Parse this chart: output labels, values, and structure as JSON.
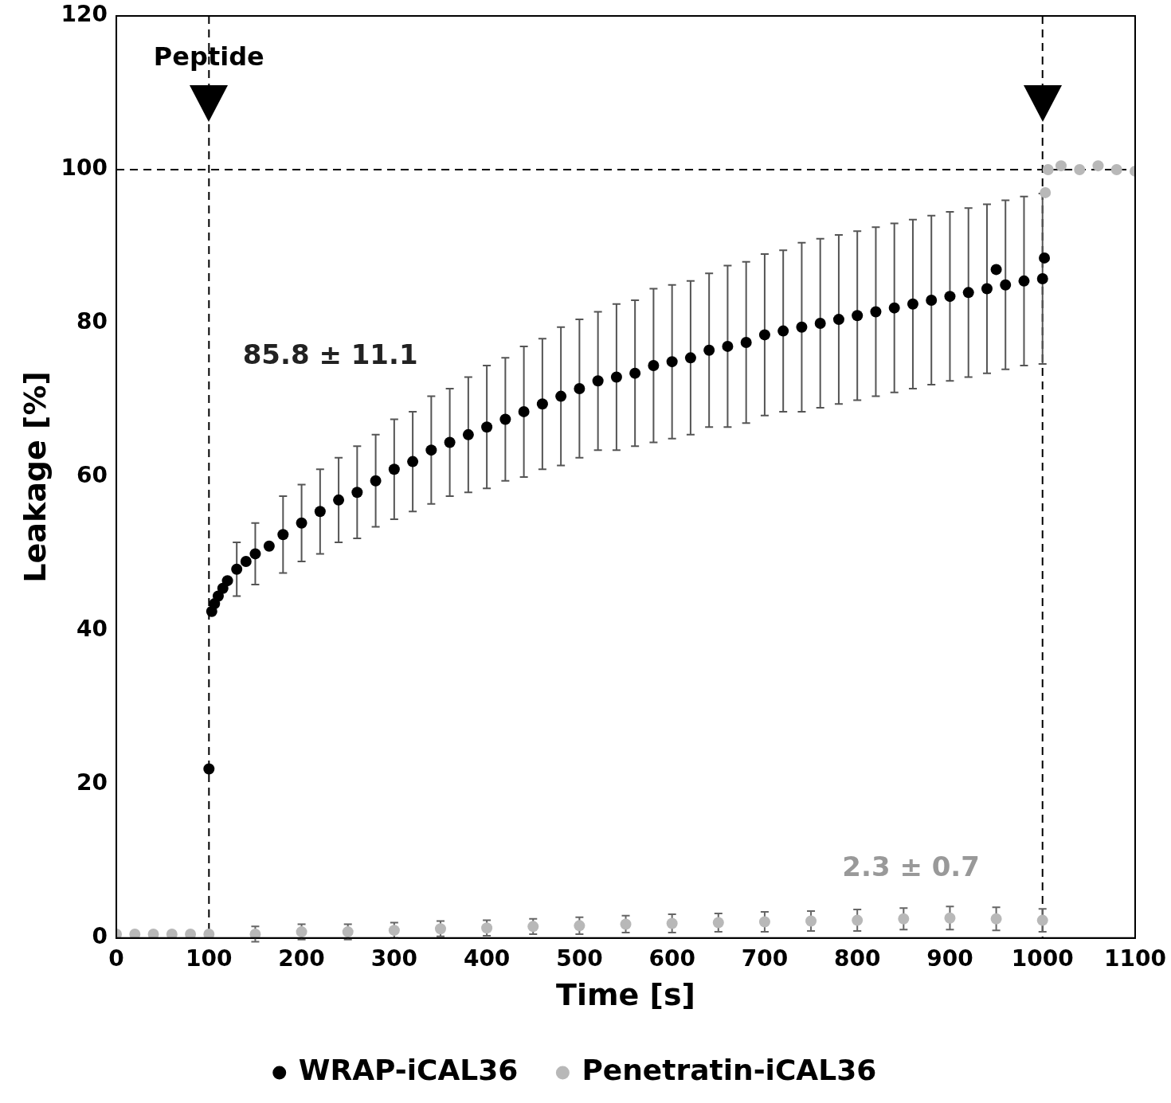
{
  "chart_data": {
    "type": "scatter",
    "xlabel": "Time [s]",
    "ylabel": "Leakage [%]",
    "xlim": [
      0,
      1100
    ],
    "xticks": [
      0,
      100,
      200,
      300,
      400,
      500,
      600,
      700,
      800,
      900,
      1000,
      1100
    ],
    "ylim": [
      0,
      120
    ],
    "yticks": [
      0,
      20,
      40,
      60,
      80,
      100,
      120
    ],
    "grid": false,
    "legend": "bottom",
    "marker": "circle",
    "series": [
      {
        "name": "WRAP-iCAL36",
        "color": "#000000",
        "x": [
          100,
          103,
          106,
          110,
          115,
          120,
          130,
          140,
          150,
          165,
          180,
          200,
          220,
          240,
          260,
          280,
          300,
          320,
          340,
          360,
          380,
          400,
          420,
          440,
          460,
          480,
          500,
          520,
          540,
          560,
          580,
          600,
          620,
          640,
          660,
          680,
          700,
          720,
          740,
          760,
          780,
          800,
          820,
          840,
          860,
          880,
          900,
          920,
          940,
          950,
          960,
          980,
          1000,
          1002
        ],
        "values": [
          22,
          42.5,
          43.5,
          44.5,
          45.5,
          46.5,
          48,
          49,
          50,
          51,
          52.5,
          54,
          55.5,
          57,
          58,
          59.5,
          61,
          62,
          63.5,
          64.5,
          65.5,
          66.5,
          67.5,
          68.5,
          69.5,
          70.5,
          71.5,
          72.5,
          73,
          73.5,
          74.5,
          75,
          75.5,
          76.5,
          77,
          77.5,
          78.5,
          79,
          79.5,
          80,
          80.5,
          81,
          81.5,
          82,
          82.5,
          83,
          83.5,
          84,
          84.5,
          87,
          85,
          85.5,
          85.8,
          88.5
        ],
        "errors": [
          null,
          null,
          null,
          null,
          null,
          null,
          3.5,
          null,
          4,
          null,
          5,
          5,
          5.5,
          5.5,
          6,
          6,
          6.5,
          6.5,
          7,
          7,
          7.5,
          8,
          8,
          8.5,
          8.5,
          9,
          9,
          9,
          9.5,
          9.5,
          10,
          10,
          10,
          10,
          10.5,
          10.5,
          10.5,
          10.5,
          11,
          11,
          11,
          11,
          11,
          11,
          11,
          11,
          11,
          11,
          11,
          null,
          11,
          11,
          11.1,
          null
        ]
      },
      {
        "name": "Penetratin-iCAL36",
        "color": "#b8b8b8",
        "x": [
          0,
          20,
          40,
          60,
          80,
          100,
          150,
          200,
          250,
          300,
          350,
          400,
          450,
          500,
          550,
          600,
          650,
          700,
          750,
          800,
          850,
          900,
          950,
          1000,
          1003,
          1006,
          1020,
          1040,
          1060,
          1080,
          1100
        ],
        "values": [
          0.5,
          0.5,
          0.5,
          0.5,
          0.5,
          0.5,
          0.5,
          0.8,
          0.8,
          1,
          1.2,
          1.3,
          1.5,
          1.6,
          1.8,
          1.9,
          2,
          2.1,
          2.2,
          2.3,
          2.5,
          2.6,
          2.5,
          2.3,
          97,
          100,
          100.5,
          100,
          100.5,
          100,
          99.8
        ],
        "errors": [
          null,
          null,
          null,
          null,
          null,
          null,
          1,
          1,
          1,
          1,
          1,
          1,
          1,
          1.1,
          1.1,
          1.2,
          1.2,
          1.3,
          1.3,
          1.4,
          1.4,
          1.5,
          1.5,
          1.5,
          null,
          null,
          null,
          null,
          null,
          null,
          null
        ]
      }
    ],
    "ref_lines": [
      {
        "axis": "y",
        "value": 100,
        "line_style": "dashed"
      },
      {
        "axis": "x",
        "value": 100,
        "label": "Peptide",
        "line_style": "dashed"
      },
      {
        "axis": "x",
        "value": 1000,
        "line_style": "dashed"
      }
    ],
    "annotations": [
      "85.8 ± 11.1",
      "2.3 ± 0.7"
    ]
  }
}
